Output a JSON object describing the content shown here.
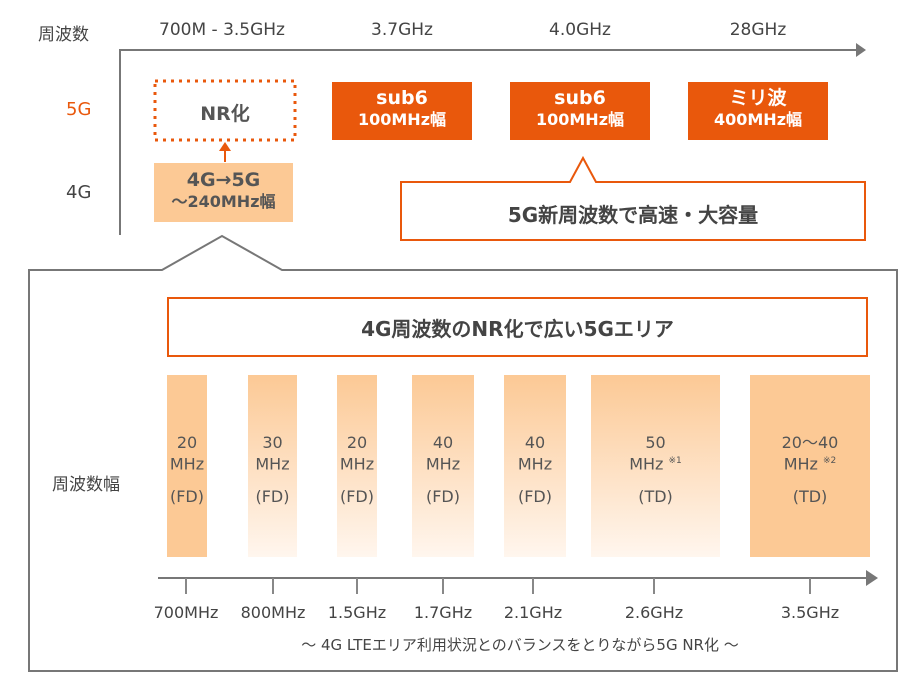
{
  "top": {
    "row_header": "周波数",
    "freq_labels": [
      "700M - 3.5GHz",
      "3.7GHz",
      "4.0GHz",
      "28GHz"
    ],
    "row_5g": "5G",
    "row_4g": "4G",
    "nr_box": "NR化",
    "lte_box": {
      "line1": "4G→5G",
      "line2": "～240MHz幅"
    },
    "new_bands": [
      {
        "line1": "sub6",
        "line2": "100MHz幅"
      },
      {
        "line1": "sub6",
        "line2": "100MHz幅"
      },
      {
        "line1": "ミリ波",
        "line2": "400MHz幅"
      }
    ],
    "callout": "5G新周波数で高速・大容量"
  },
  "bottom": {
    "title": "4G周波数のNR化で広い5Gエリア",
    "row_label": "周波数幅",
    "bands": [
      {
        "freq": "700MHz",
        "width": "20",
        "unit": "MHz",
        "note": "",
        "mode": "(FD)"
      },
      {
        "freq": "800MHz",
        "width": "30",
        "unit": "MHz",
        "note": "",
        "mode": "(FD)"
      },
      {
        "freq": "1.5GHz",
        "width": "20",
        "unit": "MHz",
        "note": "",
        "mode": "(FD)"
      },
      {
        "freq": "1.7GHz",
        "width": "40",
        "unit": "MHz",
        "note": "",
        "mode": "(FD)"
      },
      {
        "freq": "2.1GHz",
        "width": "40",
        "unit": "MHz",
        "note": "",
        "mode": "(FD)"
      },
      {
        "freq": "2.6GHz",
        "width": "50",
        "unit": "MHz",
        "note": "※1",
        "mode": "(TD)"
      },
      {
        "freq": "3.5GHz",
        "width": "20～40",
        "unit": "MHz",
        "note": "※2",
        "mode": "(TD)"
      }
    ],
    "footer": "～ 4G LTEエリア利用状況とのバランスをとりながら5G NR化 ～"
  },
  "colors": {
    "accent": "#e9580c",
    "light": "#fcc995",
    "axis": "#777777"
  }
}
